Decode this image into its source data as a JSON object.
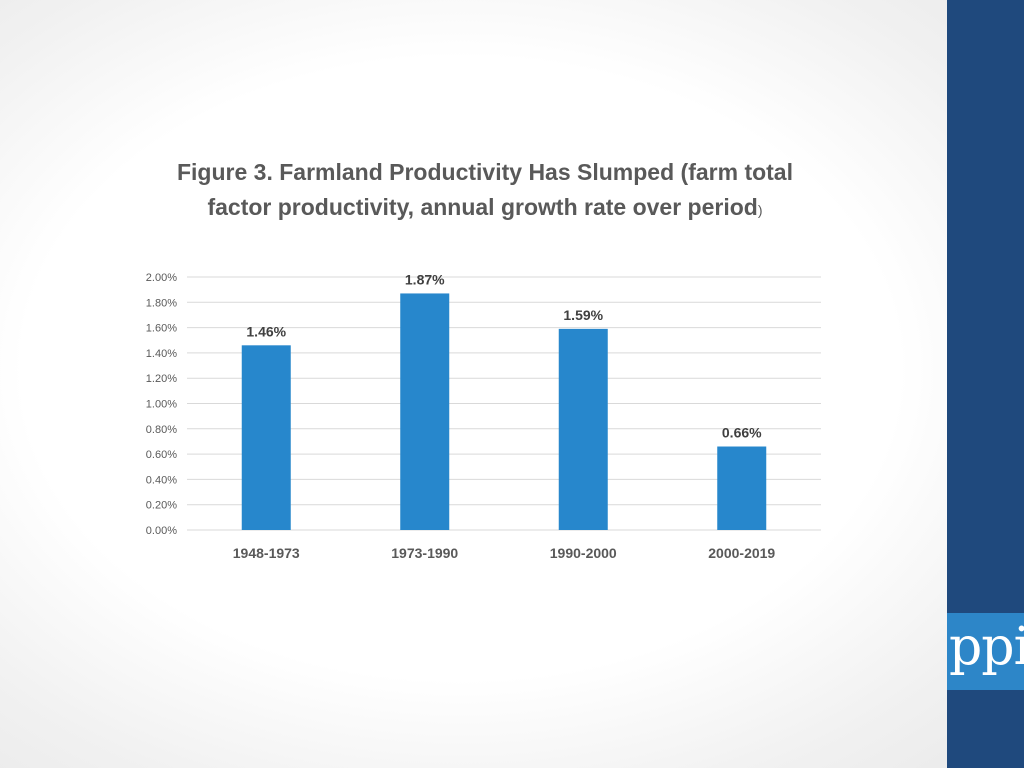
{
  "slide": {
    "sidebar_color": "#1f497d",
    "logo_bg_color": "#2d86c8",
    "logo_text": "ppi"
  },
  "chart_data": {
    "type": "bar",
    "title_main": "Figure 3. Farmland Productivity Has Slumped (farm total factor productivity, annual growth rate over period",
    "title_paren": ")",
    "categories": [
      "1948-1973",
      "1973-1990",
      "1990-2000",
      "2000-2019"
    ],
    "values": [
      1.46,
      1.87,
      1.59,
      0.66
    ],
    "data_labels": [
      "1.46%",
      "1.87%",
      "1.59%",
      "0.66%"
    ],
    "y_ticks": [
      0,
      0.2,
      0.4,
      0.6,
      0.8,
      1.0,
      1.2,
      1.4,
      1.6,
      1.8,
      2.0
    ],
    "y_tick_labels": [
      "0.00%",
      "0.20%",
      "0.40%",
      "0.60%",
      "0.80%",
      "1.00%",
      "1.20%",
      "1.40%",
      "1.60%",
      "1.80%",
      "2.00%"
    ],
    "ylim": [
      0,
      2.0
    ],
    "grid": true,
    "bar_color": "#2787cc",
    "xlabel": "",
    "ylabel": ""
  }
}
